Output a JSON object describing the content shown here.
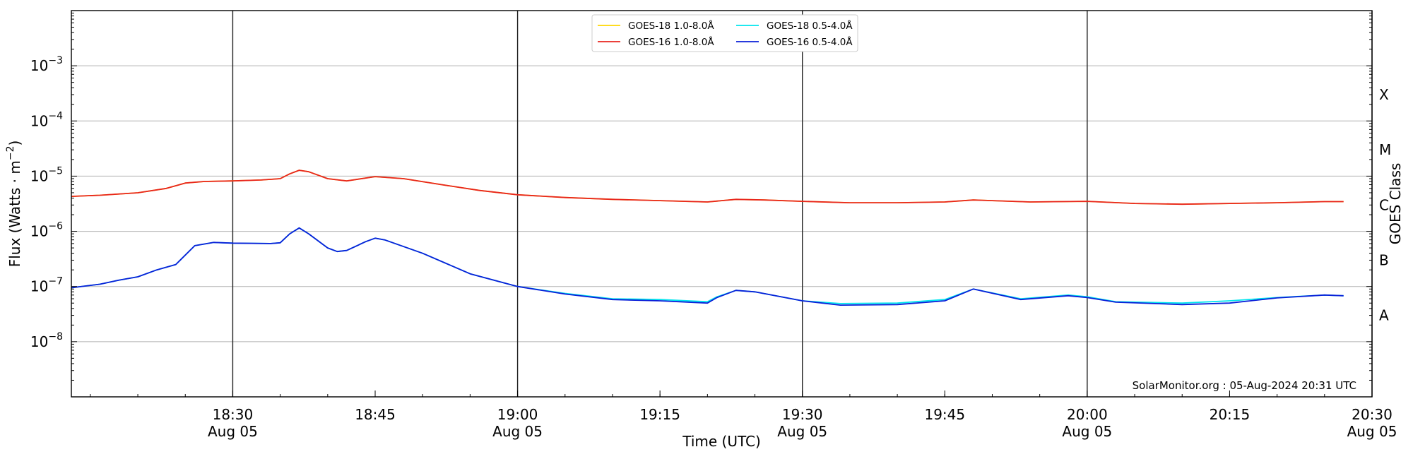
{
  "chart_data": {
    "type": "line",
    "xlabel": "Time (UTC)",
    "ylabel": "Flux (Watts · m⁻²)",
    "ylabel_right": "GOES Class",
    "y_scale": "log",
    "ylim": [
      1e-09,
      0.01
    ],
    "xlim": [
      "2024-08-05 18:13",
      "2024-08-05 20:30"
    ],
    "grid": "horizontal at decades",
    "legend_position": "top-center",
    "annotation": "SolarMonitor.org : 05-Aug-2024 20:31 UTC",
    "x_ticks": [
      {
        "time": "2024-08-05 18:30",
        "label": "18:30",
        "sub": "Aug 05",
        "major": true
      },
      {
        "time": "2024-08-05 18:45",
        "label": "18:45",
        "sub": "",
        "major": false
      },
      {
        "time": "2024-08-05 19:00",
        "label": "19:00",
        "sub": "Aug 05",
        "major": true
      },
      {
        "time": "2024-08-05 19:15",
        "label": "19:15",
        "sub": "",
        "major": false
      },
      {
        "time": "2024-08-05 19:30",
        "label": "19:30",
        "sub": "Aug 05",
        "major": true
      },
      {
        "time": "2024-08-05 19:45",
        "label": "19:45",
        "sub": "",
        "major": false
      },
      {
        "time": "2024-08-05 20:00",
        "label": "20:00",
        "sub": "Aug 05",
        "major": true
      },
      {
        "time": "2024-08-05 20:15",
        "label": "20:15",
        "sub": "",
        "major": false
      },
      {
        "time": "2024-08-05 20:30",
        "label": "20:30",
        "sub": "Aug 05",
        "major": true
      }
    ],
    "y_ticks": [
      {
        "value": 1e-08,
        "label": "10",
        "exp": "−8"
      },
      {
        "value": 1e-07,
        "label": "10",
        "exp": "−7"
      },
      {
        "value": 1e-06,
        "label": "10",
        "exp": "−6"
      },
      {
        "value": 1e-05,
        "label": "10",
        "exp": "−5"
      },
      {
        "value": 0.0001,
        "label": "10",
        "exp": "−4"
      },
      {
        "value": 0.001,
        "label": "10",
        "exp": "−3"
      }
    ],
    "goes_classes": [
      {
        "label": "A",
        "value": 3e-08
      },
      {
        "label": "B",
        "value": 3e-07
      },
      {
        "label": "C",
        "value": 3e-06
      },
      {
        "label": "M",
        "value": 3e-05
      },
      {
        "label": "X",
        "value": 0.0003
      }
    ],
    "series": [
      {
        "name": "GOES-18 1.0-8.0Å",
        "color": "#ffd700",
        "x": [
          "2024-08-05 18:13",
          "2024-08-05 18:16",
          "2024-08-05 18:20",
          "2024-08-05 18:23",
          "2024-08-05 18:25",
          "2024-08-05 18:27",
          "2024-08-05 18:30",
          "2024-08-05 18:33",
          "2024-08-05 18:35",
          "2024-08-05 18:36",
          "2024-08-05 18:37",
          "2024-08-05 18:38",
          "2024-08-05 18:40",
          "2024-08-05 18:42",
          "2024-08-05 18:45",
          "2024-08-05 18:48",
          "2024-08-05 18:52",
          "2024-08-05 18:56",
          "2024-08-05 19:00",
          "2024-08-05 19:05",
          "2024-08-05 19:10",
          "2024-08-05 19:15",
          "2024-08-05 19:20",
          "2024-08-05 19:23",
          "2024-08-05 19:26",
          "2024-08-05 19:30",
          "2024-08-05 19:35",
          "2024-08-05 19:40",
          "2024-08-05 19:45",
          "2024-08-05 19:48",
          "2024-08-05 19:54",
          "2024-08-05 20:00",
          "2024-08-05 20:05",
          "2024-08-05 20:10",
          "2024-08-05 20:15",
          "2024-08-05 20:20",
          "2024-08-05 20:25",
          "2024-08-05 20:27"
        ],
        "y": [
          4.3e-06,
          4.5e-06,
          5e-06,
          6e-06,
          7.5e-06,
          8e-06,
          8.2e-06,
          8.5e-06,
          9e-06,
          1.1e-05,
          1.28e-05,
          1.2e-05,
          9e-06,
          8.2e-06,
          9.8e-06,
          9e-06,
          7e-06,
          5.5e-06,
          4.6e-06,
          4.1e-06,
          3.8e-06,
          3.6e-06,
          3.4e-06,
          3.8e-06,
          3.7e-06,
          3.5e-06,
          3.3e-06,
          3.3e-06,
          3.4e-06,
          3.7e-06,
          3.4e-06,
          3.5e-06,
          3.2e-06,
          3.1e-06,
          3.2e-06,
          3.3e-06,
          3.45e-06,
          3.45e-06
        ]
      },
      {
        "name": "GOES-18 0.5-4.0Å",
        "color": "#00e5ee",
        "x": [
          "2024-08-05 18:13",
          "2024-08-05 18:16",
          "2024-08-05 18:18",
          "2024-08-05 18:20",
          "2024-08-05 18:22",
          "2024-08-05 18:24",
          "2024-08-05 18:26",
          "2024-08-05 18:28",
          "2024-08-05 18:30",
          "2024-08-05 18:34",
          "2024-08-05 18:35",
          "2024-08-05 18:36",
          "2024-08-05 18:37",
          "2024-08-05 18:38",
          "2024-08-05 18:40",
          "2024-08-05 18:41",
          "2024-08-05 18:42",
          "2024-08-05 18:44",
          "2024-08-05 18:45",
          "2024-08-05 18:46",
          "2024-08-05 18:50",
          "2024-08-05 18:55",
          "2024-08-05 19:00",
          "2024-08-05 19:05",
          "2024-08-05 19:10",
          "2024-08-05 19:15",
          "2024-08-05 19:20",
          "2024-08-05 19:21",
          "2024-08-05 19:23",
          "2024-08-05 19:25",
          "2024-08-05 19:30",
          "2024-08-05 19:34",
          "2024-08-05 19:40",
          "2024-08-05 19:45",
          "2024-08-05 19:48",
          "2024-08-05 19:53",
          "2024-08-05 19:58",
          "2024-08-05 20:00",
          "2024-08-05 20:03",
          "2024-08-05 20:10",
          "2024-08-05 20:15",
          "2024-08-05 20:20",
          "2024-08-05 20:25",
          "2024-08-05 20:27"
        ],
        "y": [
          9.5e-08,
          1.1e-07,
          1.3e-07,
          1.5e-07,
          2e-07,
          2.5e-07,
          5.5e-07,
          6.3e-07,
          6.1e-07,
          6e-07,
          6.2e-07,
          9e-07,
          1.15e-06,
          9e-07,
          5e-07,
          4.3e-07,
          4.5e-07,
          6.5e-07,
          7.5e-07,
          7e-07,
          4e-07,
          1.7e-07,
          1e-07,
          7.5e-08,
          6e-08,
          5.8e-08,
          5.3e-08,
          6.5e-08,
          8.5e-08,
          8e-08,
          5.5e-08,
          4.9e-08,
          5e-08,
          5.8e-08,
          9e-08,
          6e-08,
          7e-08,
          6.5e-08,
          5.3e-08,
          5e-08,
          5.5e-08,
          6.3e-08,
          7e-08,
          6.8e-08
        ]
      },
      {
        "name": "GOES-16 1.0-8.0Å",
        "color": "#e8251e",
        "x": [
          "2024-08-05 18:13",
          "2024-08-05 18:16",
          "2024-08-05 18:20",
          "2024-08-05 18:23",
          "2024-08-05 18:25",
          "2024-08-05 18:27",
          "2024-08-05 18:30",
          "2024-08-05 18:33",
          "2024-08-05 18:35",
          "2024-08-05 18:36",
          "2024-08-05 18:37",
          "2024-08-05 18:38",
          "2024-08-05 18:40",
          "2024-08-05 18:42",
          "2024-08-05 18:45",
          "2024-08-05 18:48",
          "2024-08-05 18:52",
          "2024-08-05 18:56",
          "2024-08-05 19:00",
          "2024-08-05 19:05",
          "2024-08-05 19:10",
          "2024-08-05 19:15",
          "2024-08-05 19:20",
          "2024-08-05 19:23",
          "2024-08-05 19:26",
          "2024-08-05 19:30",
          "2024-08-05 19:35",
          "2024-08-05 19:40",
          "2024-08-05 19:45",
          "2024-08-05 19:48",
          "2024-08-05 19:54",
          "2024-08-05 20:00",
          "2024-08-05 20:05",
          "2024-08-05 20:10",
          "2024-08-05 20:15",
          "2024-08-05 20:20",
          "2024-08-05 20:25",
          "2024-08-05 20:27"
        ],
        "y": [
          4.3e-06,
          4.5e-06,
          5e-06,
          6e-06,
          7.5e-06,
          8e-06,
          8.2e-06,
          8.5e-06,
          9e-06,
          1.1e-05,
          1.28e-05,
          1.2e-05,
          9e-06,
          8.2e-06,
          9.8e-06,
          9e-06,
          7e-06,
          5.5e-06,
          4.6e-06,
          4.1e-06,
          3.8e-06,
          3.6e-06,
          3.4e-06,
          3.8e-06,
          3.7e-06,
          3.5e-06,
          3.3e-06,
          3.3e-06,
          3.4e-06,
          3.7e-06,
          3.4e-06,
          3.5e-06,
          3.2e-06,
          3.1e-06,
          3.2e-06,
          3.3e-06,
          3.45e-06,
          3.45e-06
        ]
      },
      {
        "name": "GOES-16 0.5-4.0Å",
        "color": "#0a1fd8",
        "x": [
          "2024-08-05 18:13",
          "2024-08-05 18:16",
          "2024-08-05 18:18",
          "2024-08-05 18:20",
          "2024-08-05 18:22",
          "2024-08-05 18:24",
          "2024-08-05 18:26",
          "2024-08-05 18:28",
          "2024-08-05 18:30",
          "2024-08-05 18:34",
          "2024-08-05 18:35",
          "2024-08-05 18:36",
          "2024-08-05 18:37",
          "2024-08-05 18:38",
          "2024-08-05 18:40",
          "2024-08-05 18:41",
          "2024-08-05 18:42",
          "2024-08-05 18:44",
          "2024-08-05 18:45",
          "2024-08-05 18:46",
          "2024-08-05 18:50",
          "2024-08-05 18:55",
          "2024-08-05 19:00",
          "2024-08-05 19:05",
          "2024-08-05 19:10",
          "2024-08-05 19:15",
          "2024-08-05 19:20",
          "2024-08-05 19:21",
          "2024-08-05 19:23",
          "2024-08-05 19:25",
          "2024-08-05 19:30",
          "2024-08-05 19:34",
          "2024-08-05 19:40",
          "2024-08-05 19:45",
          "2024-08-05 19:48",
          "2024-08-05 19:53",
          "2024-08-05 19:58",
          "2024-08-05 20:00",
          "2024-08-05 20:03",
          "2024-08-05 20:10",
          "2024-08-05 20:15",
          "2024-08-05 20:20",
          "2024-08-05 20:25",
          "2024-08-05 20:27"
        ],
        "y": [
          9.5e-08,
          1.1e-07,
          1.3e-07,
          1.5e-07,
          2e-07,
          2.5e-07,
          5.5e-07,
          6.3e-07,
          6.1e-07,
          6e-07,
          6.2e-07,
          9e-07,
          1.15e-06,
          9e-07,
          5e-07,
          4.3e-07,
          4.5e-07,
          6.5e-07,
          7.5e-07,
          7e-07,
          4e-07,
          1.7e-07,
          1e-07,
          7.3e-08,
          5.8e-08,
          5.5e-08,
          5e-08,
          6.3e-08,
          8.5e-08,
          8e-08,
          5.5e-08,
          4.6e-08,
          4.7e-08,
          5.5e-08,
          9e-08,
          5.8e-08,
          6.8e-08,
          6.3e-08,
          5.2e-08,
          4.7e-08,
          5e-08,
          6.2e-08,
          7e-08,
          6.8e-08
        ]
      }
    ]
  }
}
